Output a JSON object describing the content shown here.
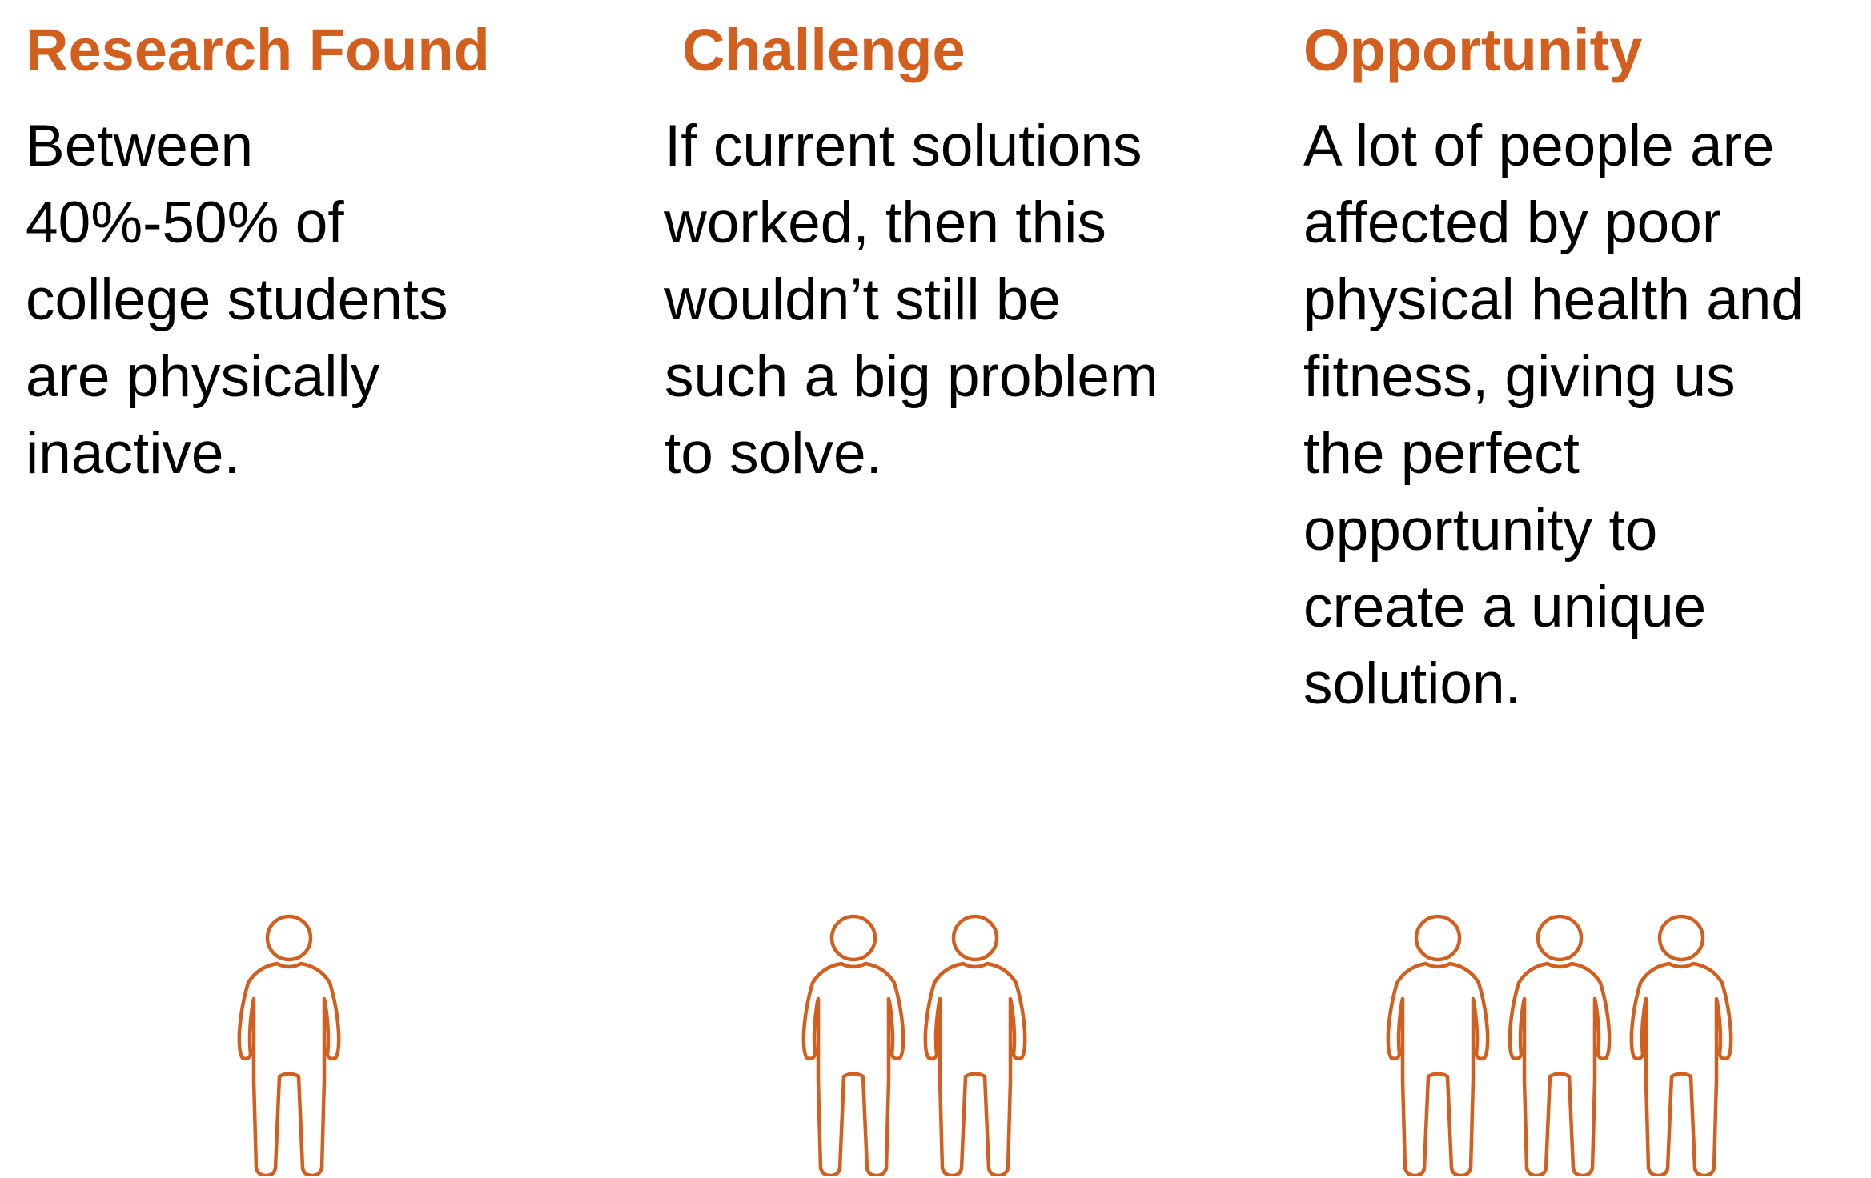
{
  "colors": {
    "accent": "#d35f1f",
    "text": "#000000",
    "background": "#ffffff"
  },
  "columns": [
    {
      "heading": "Research Found",
      "body": "Between\n40%-50% of\ncollege students\nare physically\ninactive.",
      "icon": "person-icon",
      "icon_count": 1
    },
    {
      "heading": "Challenge",
      "body": "If current solutions\nworked, then this\nwouldn’t still be\nsuch a big problem\nto solve.",
      "icon": "person-icon",
      "icon_count": 2
    },
    {
      "heading": "Opportunity",
      "body": "A lot of people are\naffected by poor\nphysical health and\nfitness, giving us\nthe perfect\nopportunity to\ncreate a unique\nsolution.",
      "icon": "person-icon",
      "icon_count": 3
    }
  ]
}
